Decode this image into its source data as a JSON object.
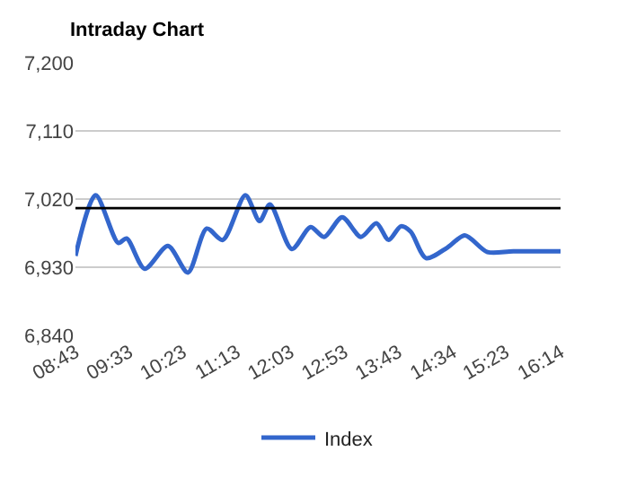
{
  "chart_data": {
    "type": "line",
    "title": "Intraday Chart",
    "x": [
      8.717,
      9.03,
      9.38,
      9.51,
      9.79,
      10.15,
      10.46,
      10.75,
      11.0,
      11.35,
      11.57,
      11.73,
      12.07,
      12.36,
      12.57,
      12.85,
      13.14,
      13.38,
      13.57,
      13.76,
      13.91,
      14.15,
      14.48,
      14.75,
      15.1,
      15.5,
      16.233
    ],
    "series": [
      {
        "name": "Index",
        "color": "#3366cc",
        "values": [
          6945,
          7025,
          6962,
          6968,
          6928,
          6958,
          6923,
          6981,
          6966,
          7025,
          6991,
          7013,
          6954,
          6983,
          6970,
          6996,
          6970,
          6988,
          6966,
          6984,
          6977,
          6942,
          6956,
          6972,
          6950,
          6951,
          6951
        ]
      }
    ],
    "xlim": [
      8.717,
      16.233
    ],
    "xticks": [
      {
        "value": 8.717,
        "label": "08:43"
      },
      {
        "value": 9.55,
        "label": "09:33"
      },
      {
        "value": 10.383,
        "label": "10:23"
      },
      {
        "value": 11.217,
        "label": "11:13"
      },
      {
        "value": 12.05,
        "label": "12:03"
      },
      {
        "value": 12.883,
        "label": "12:53"
      },
      {
        "value": 13.717,
        "label": "13:43"
      },
      {
        "value": 14.567,
        "label": "14:34"
      },
      {
        "value": 15.383,
        "label": "15:23"
      },
      {
        "value": 16.233,
        "label": "16:14"
      }
    ],
    "ylim": [
      6840,
      7200
    ],
    "yticks": [
      {
        "value": 6840,
        "label": "6,840"
      },
      {
        "value": 6930,
        "label": "6,930"
      },
      {
        "value": 7020,
        "label": "7,020"
      },
      {
        "value": 7110,
        "label": "7,110"
      },
      {
        "value": 7200,
        "label": "7,200"
      }
    ],
    "ref_lines": [
      {
        "axis": "y",
        "value": 7008,
        "color": "#000000"
      }
    ],
    "grid": "y",
    "legend": "bottom",
    "marker": "none",
    "line_style": "solid"
  }
}
